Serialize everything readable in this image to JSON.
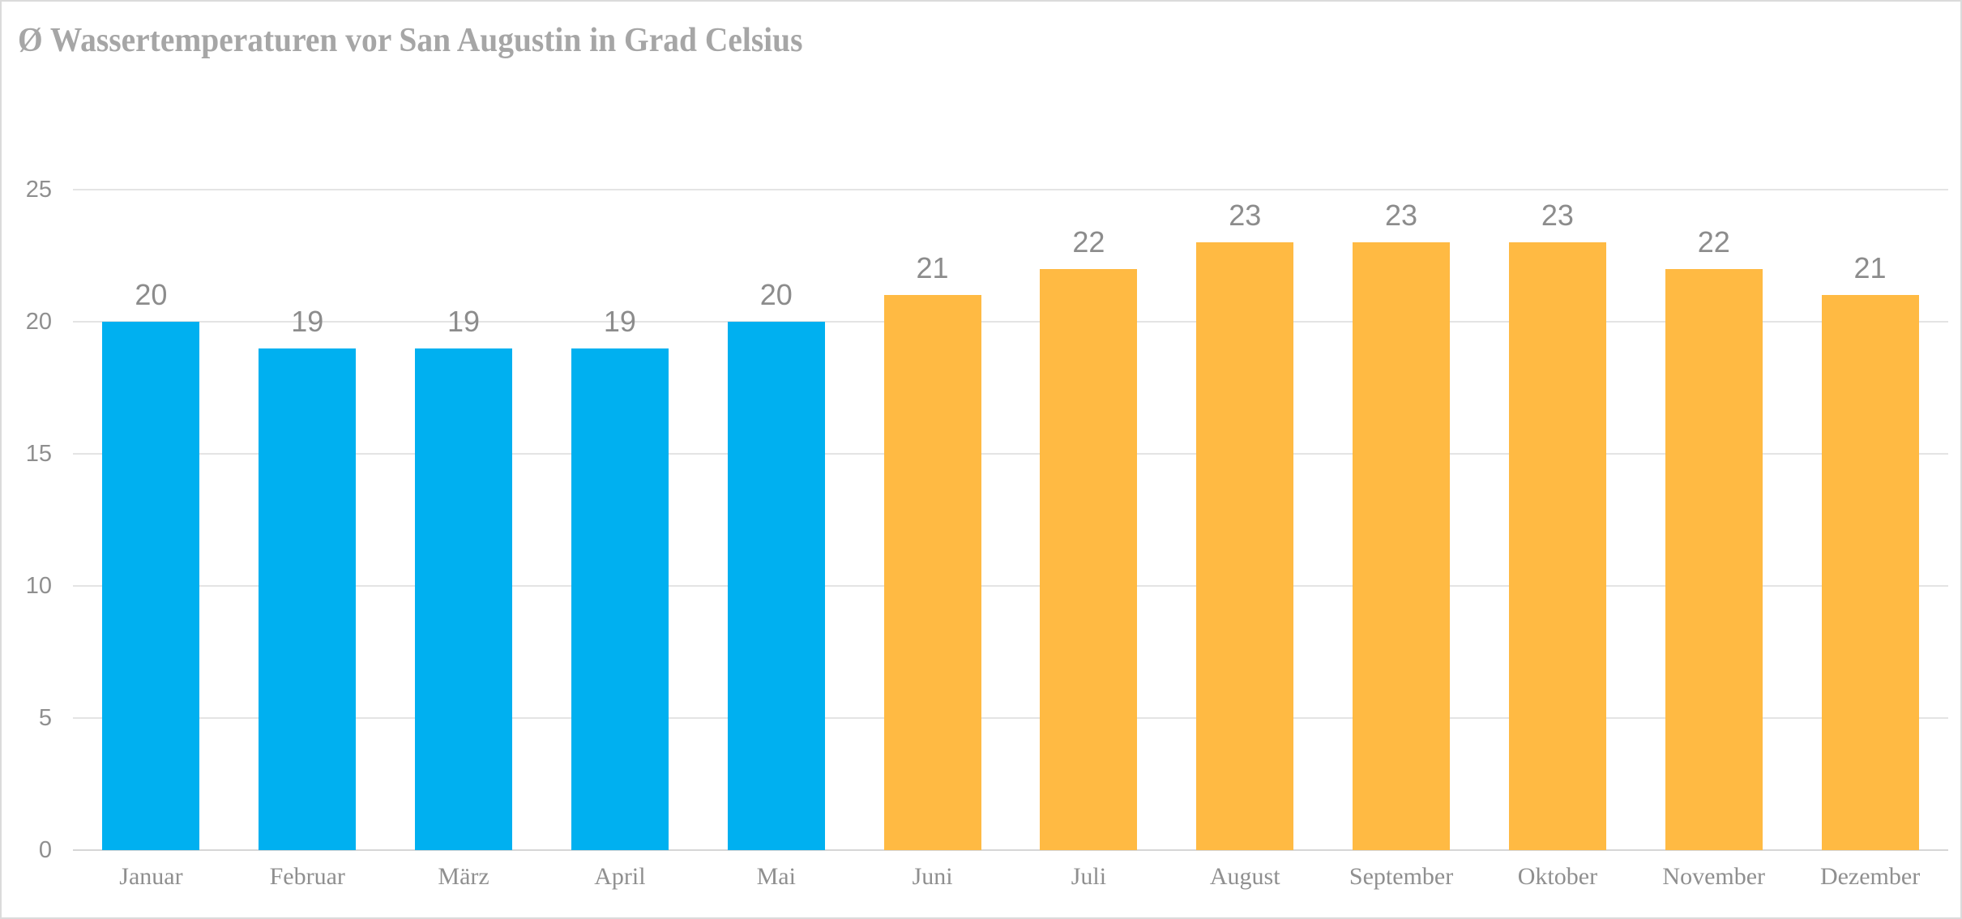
{
  "chart": {
    "title": "Ø Wassertemperaturen vor San Augustin in Grad Celsius"
  },
  "chart_data": {
    "type": "bar",
    "title": "Ø Wassertemperaturen vor San Augustin in Grad Celsius",
    "categories": [
      "Januar",
      "Februar",
      "März",
      "April",
      "Mai",
      "Juni",
      "Juli",
      "August",
      "September",
      "Oktober",
      "November",
      "Dezember"
    ],
    "values": [
      20,
      19,
      19,
      19,
      20,
      21,
      22,
      23,
      23,
      23,
      22,
      21
    ],
    "bar_colors": [
      "#00B0F0",
      "#00B0F0",
      "#00B0F0",
      "#00B0F0",
      "#00B0F0",
      "#FFBA43",
      "#FFBA43",
      "#FFBA43",
      "#FFBA43",
      "#FFBA43",
      "#FFBA43",
      "#FFBA43"
    ],
    "colors": {
      "blue_bars": "#00B0F0",
      "orange_bars": "#FFBA43",
      "gridline": "#E4E4E4",
      "axis_text": "#8F8F8F",
      "data_label_text": "#8C8C8C",
      "title_text": "#A6A6A6"
    },
    "xlabel": "",
    "ylabel": "",
    "ylim": [
      0,
      25
    ],
    "yticks": [
      0,
      5,
      10,
      15,
      20,
      25
    ],
    "grid": true,
    "legend": false,
    "data_labels_shown": true
  }
}
